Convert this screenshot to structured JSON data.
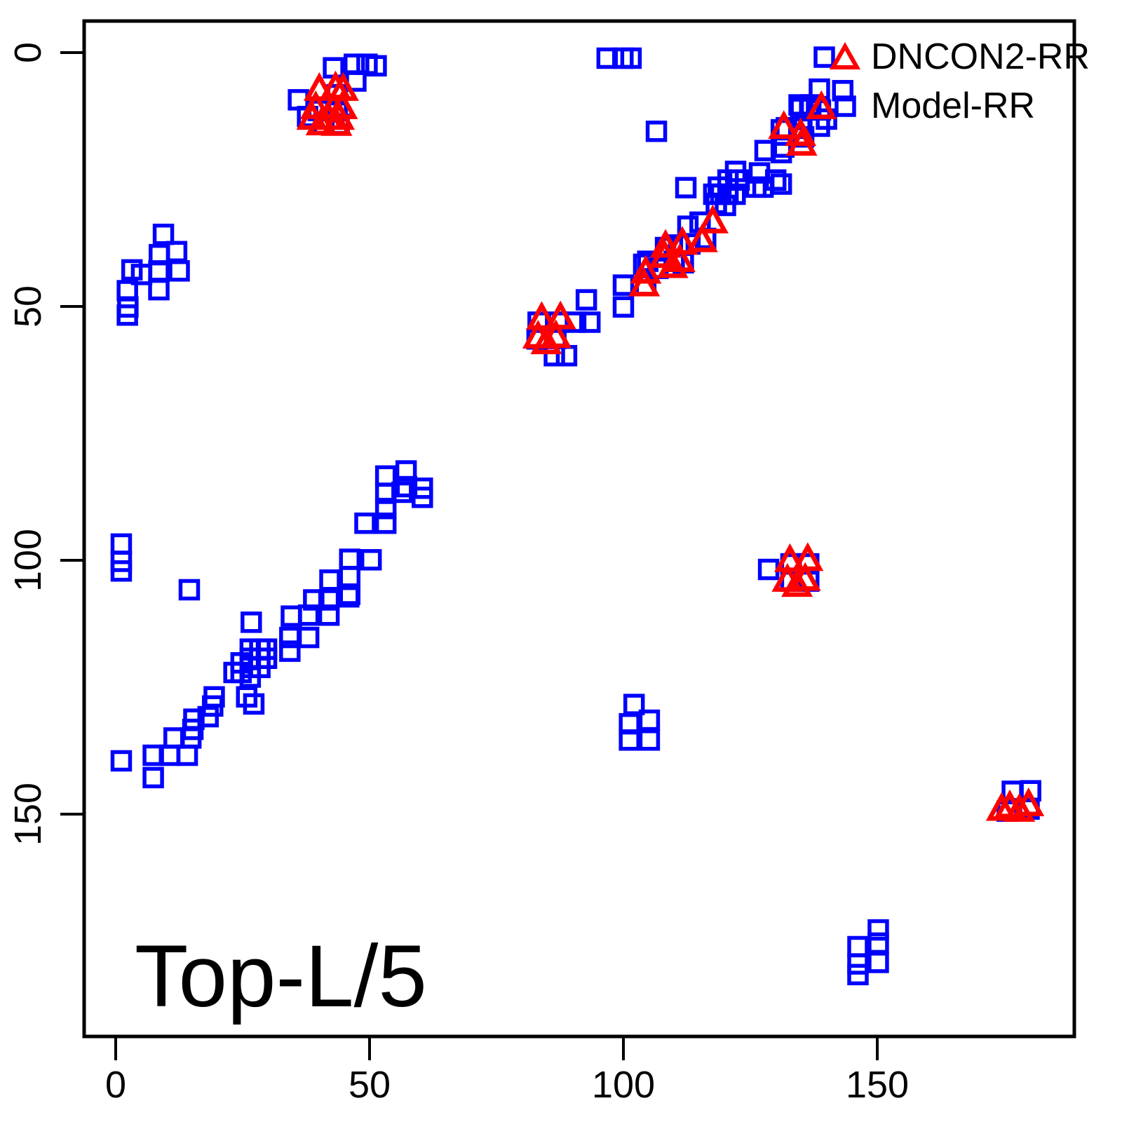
{
  "chart_data": {
    "type": "scatter",
    "title": "",
    "annotation": "Top-L/5",
    "xlabel": "",
    "ylabel": "",
    "x_ticks": [
      0,
      50,
      100,
      150
    ],
    "y_ticks": [
      0,
      50,
      100,
      150
    ],
    "xlim": [
      -6,
      189
    ],
    "ylim": [
      194,
      -6
    ],
    "y_axis_inverted": true,
    "grid": false,
    "legend_position": "top-right",
    "colors": {
      "dncon2": "#FF0000",
      "model": "#0000FF",
      "axis": "#000000"
    },
    "series": [
      {
        "name": "DNCON2-RR",
        "marker": "triangle",
        "color": "#FF0000",
        "points": [
          [
            40.1,
            7.4
          ],
          [
            43.3,
            7.1
          ],
          [
            44.8,
            7.4
          ],
          [
            39.4,
            11.0
          ],
          [
            42.9,
            11.0
          ],
          [
            44.6,
            11.0
          ],
          [
            38.7,
            13.1
          ],
          [
            41.9,
            13.1
          ],
          [
            44.0,
            13.1
          ],
          [
            40.5,
            14.2
          ],
          [
            43.5,
            14.3
          ],
          [
            139.0,
            11.0
          ],
          [
            131.6,
            14.9
          ],
          [
            134.9,
            16.3
          ],
          [
            135.1,
            18.2
          ],
          [
            117.6,
            33.5
          ],
          [
            115.5,
            37.2
          ],
          [
            111.6,
            37.7
          ],
          [
            108.3,
            38.3
          ],
          [
            108.1,
            40.3
          ],
          [
            111.1,
            41.1
          ],
          [
            109.7,
            42.3
          ],
          [
            104.4,
            43.4
          ],
          [
            104.1,
            45.9
          ],
          [
            83.9,
            52.5
          ],
          [
            87.6,
            52.4
          ],
          [
            83.2,
            56.2
          ],
          [
            86.7,
            56.1
          ],
          [
            84.8,
            57.3
          ],
          [
            132.8,
            100.2
          ],
          [
            136.3,
            100.0
          ],
          [
            132.3,
            104.1
          ],
          [
            135.8,
            103.9
          ],
          [
            134.2,
            105.1
          ],
          [
            174.5,
            149.2
          ],
          [
            176.1,
            148.7
          ],
          [
            178.0,
            149.4
          ],
          [
            179.8,
            148.3
          ]
        ]
      },
      {
        "name": "Model-RR",
        "marker": "square",
        "color": "#0000FF",
        "points": [
          [
            36.0,
            9.3
          ],
          [
            42.9,
            3.0
          ],
          [
            47.0,
            2.3
          ],
          [
            49.5,
            2.3
          ],
          [
            51.3,
            2.6
          ],
          [
            47.3,
            5.6
          ],
          [
            43.6,
            8.3
          ],
          [
            39.9,
            11.4
          ],
          [
            43.6,
            11.4
          ],
          [
            41.0,
            14.1
          ],
          [
            44.0,
            14.1
          ],
          [
            37.8,
            12.6
          ],
          [
            96.8,
            1.1
          ],
          [
            99.9,
            1.1
          ],
          [
            101.5,
            1.1
          ],
          [
            106.5,
            15.5
          ],
          [
            112.3,
            26.6
          ],
          [
            138.6,
            7.2
          ],
          [
            143.2,
            7.5
          ],
          [
            134.6,
            10.3
          ],
          [
            136.9,
            10.3
          ],
          [
            140.0,
            13.1
          ],
          [
            132.1,
            14.8
          ],
          [
            134.9,
            11.0
          ],
          [
            136.7,
            10.8
          ],
          [
            138.8,
            11.3
          ],
          [
            138.6,
            14.5
          ],
          [
            134.9,
            14.9
          ],
          [
            131.1,
            15.2
          ],
          [
            135.5,
            16.6
          ],
          [
            131.6,
            18.6
          ],
          [
            131.1,
            19.7
          ],
          [
            127.9,
            19.3
          ],
          [
            126.1,
            26.5
          ],
          [
            127.5,
            26.5
          ],
          [
            130.0,
            25.1
          ],
          [
            131.1,
            25.9
          ],
          [
            126.8,
            23.7
          ],
          [
            122.1,
            23.4
          ],
          [
            122.8,
            25.1
          ],
          [
            120.6,
            25.1
          ],
          [
            118.7,
            26.5
          ],
          [
            117.8,
            27.9
          ],
          [
            119.2,
            27.9
          ],
          [
            120.6,
            27.9
          ],
          [
            122.0,
            27.9
          ],
          [
            118.3,
            29.7
          ],
          [
            120.1,
            30.1
          ],
          [
            115.1,
            33.4
          ],
          [
            112.7,
            34.2
          ],
          [
            116.2,
            36.6
          ],
          [
            113.1,
            37.7
          ],
          [
            110.9,
            37.9
          ],
          [
            108.3,
            38.4
          ],
          [
            110.0,
            41.1
          ],
          [
            111.8,
            41.4
          ],
          [
            104.8,
            41.1
          ],
          [
            104.0,
            41.7
          ],
          [
            106.8,
            42.5
          ],
          [
            104.4,
            45.8
          ],
          [
            100.0,
            45.8
          ],
          [
            100.0,
            50.1
          ],
          [
            92.7,
            48.7
          ],
          [
            83.2,
            53.1
          ],
          [
            87.1,
            53.1
          ],
          [
            90.6,
            53.1
          ],
          [
            93.4,
            53.1
          ],
          [
            83.0,
            56.4
          ],
          [
            86.7,
            56.3
          ],
          [
            86.4,
            59.7
          ],
          [
            88.8,
            59.7
          ],
          [
            9.4,
            35.8
          ],
          [
            12.0,
            39.2
          ],
          [
            8.6,
            39.8
          ],
          [
            12.5,
            43.0
          ],
          [
            8.5,
            43.0
          ],
          [
            3.2,
            42.8
          ],
          [
            5.1,
            43.7
          ],
          [
            8.5,
            46.7
          ],
          [
            2.3,
            46.9
          ],
          [
            2.4,
            50.1
          ],
          [
            2.3,
            51.7
          ],
          [
            1.1,
            96.8
          ],
          [
            1.1,
            100.2
          ],
          [
            1.1,
            102.1
          ],
          [
            14.5,
            105.8
          ],
          [
            26.7,
            112.2
          ],
          [
            57.2,
            82.4
          ],
          [
            53.2,
            83.4
          ],
          [
            57.3,
            85.5
          ],
          [
            60.4,
            85.8
          ],
          [
            53.2,
            86.8
          ],
          [
            56.4,
            86.6
          ],
          [
            60.4,
            87.6
          ],
          [
            53.2,
            89.8
          ],
          [
            53.2,
            92.7
          ],
          [
            49.1,
            92.7
          ],
          [
            46.1,
            99.8
          ],
          [
            50.3,
            99.9
          ],
          [
            46.1,
            103.2
          ],
          [
            42.2,
            103.9
          ],
          [
            46.1,
            106.7
          ],
          [
            39.0,
            107.8
          ],
          [
            42.0,
            107.8
          ],
          [
            45.9,
            107.2
          ],
          [
            42.0,
            110.8
          ],
          [
            38.0,
            110.8
          ],
          [
            34.6,
            111.0
          ],
          [
            34.3,
            115.2
          ],
          [
            38.0,
            115.2
          ],
          [
            34.3,
            117.9
          ],
          [
            26.5,
            117.5
          ],
          [
            28.4,
            117.5
          ],
          [
            29.7,
            117.5
          ],
          [
            26.5,
            119.3
          ],
          [
            28.4,
            119.3
          ],
          [
            29.7,
            119.3
          ],
          [
            24.7,
            120.2
          ],
          [
            26.5,
            121.1
          ],
          [
            28.4,
            121.1
          ],
          [
            24.7,
            122.1
          ],
          [
            26.5,
            123.0
          ],
          [
            23.3,
            122.1
          ],
          [
            19.4,
            126.9
          ],
          [
            25.8,
            126.9
          ],
          [
            27.2,
            128.3
          ],
          [
            19.1,
            128.7
          ],
          [
            18.2,
            130.8
          ],
          [
            15.4,
            131.3
          ],
          [
            15.2,
            133.3
          ],
          [
            11.5,
            135.0
          ],
          [
            14.8,
            135.0
          ],
          [
            7.4,
            138.4
          ],
          [
            10.6,
            138.4
          ],
          [
            14.1,
            138.4
          ],
          [
            1.1,
            139.5
          ],
          [
            7.4,
            142.8
          ],
          [
            102.1,
            128.4
          ],
          [
            105.1,
            131.5
          ],
          [
            101.2,
            132.2
          ],
          [
            105.1,
            135.4
          ],
          [
            101.2,
            135.4
          ],
          [
            128.6,
            101.8
          ],
          [
            133.0,
            100.7
          ],
          [
            136.5,
            100.7
          ],
          [
            133.0,
            104.1
          ],
          [
            136.5,
            104.1
          ],
          [
            176.6,
            145.5
          ],
          [
            180.2,
            145.4
          ],
          [
            175.6,
            149.4
          ],
          [
            179.9,
            149.0
          ],
          [
            146.2,
            176.1
          ],
          [
            150.2,
            175.4
          ],
          [
            146.2,
            179.5
          ],
          [
            150.2,
            179.2
          ],
          [
            146.2,
            181.6
          ],
          [
            150.2,
            172.8
          ]
        ]
      }
    ]
  },
  "legend": {
    "row1_label": "DNCON2-RR",
    "row2_label": "Model-RR"
  }
}
